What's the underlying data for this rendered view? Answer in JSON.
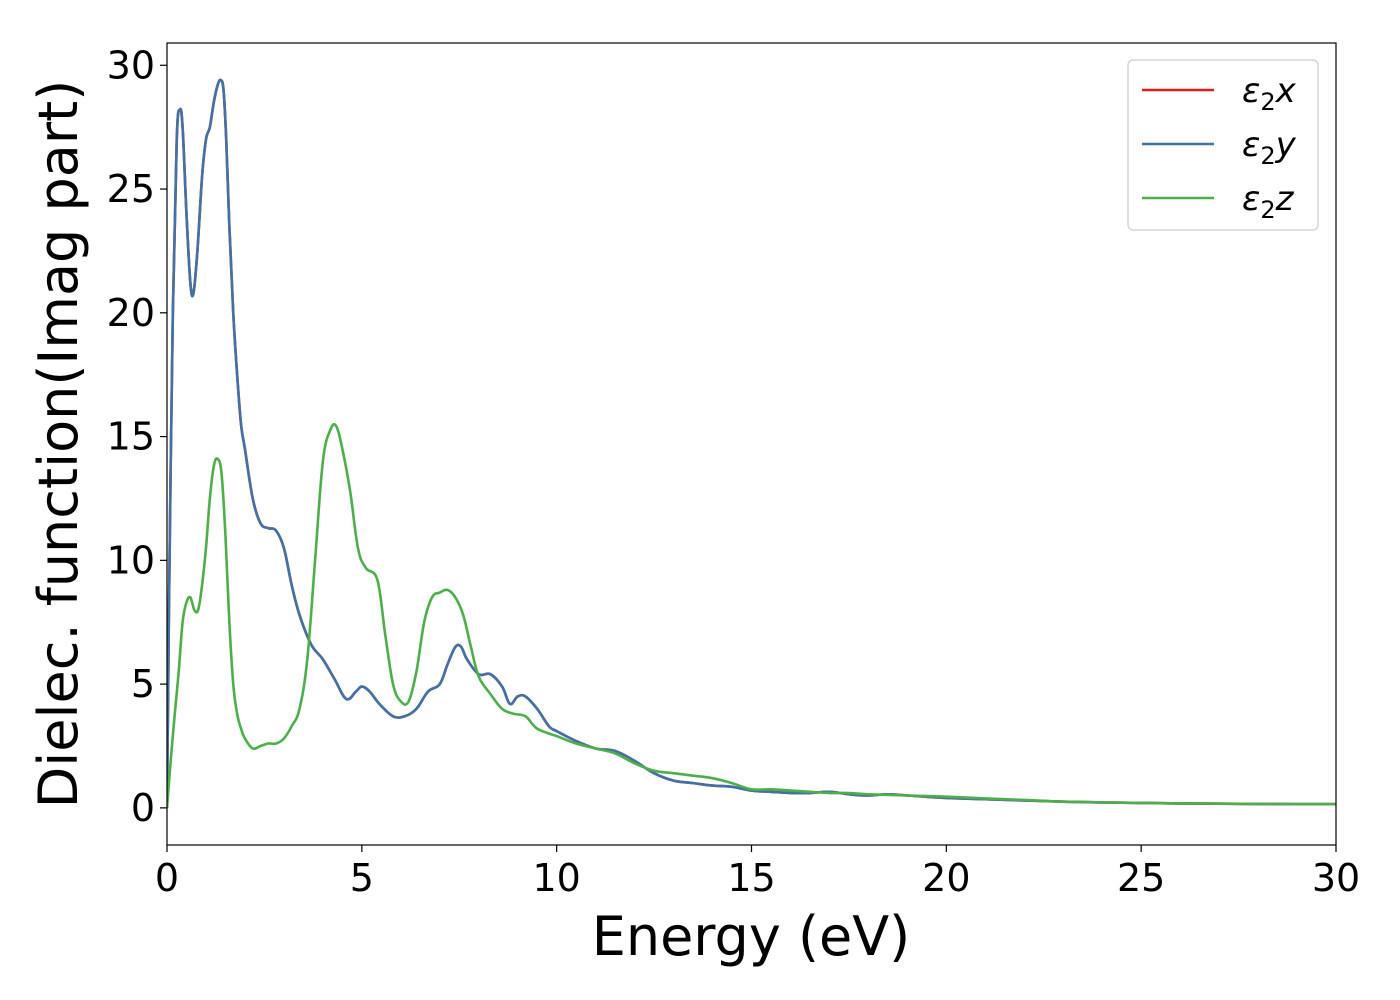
{
  "chart_data": {
    "type": "line",
    "xlabel": "Energy (eV)",
    "ylabel": "Dielec. function(Imag part)",
    "xlim": [
      0,
      30
    ],
    "ylim": [
      -1.5,
      30.9
    ],
    "xticks": [
      0,
      5,
      10,
      15,
      20,
      25,
      30
    ],
    "yticks": [
      0,
      5,
      10,
      15,
      20,
      25,
      30
    ],
    "grid": false,
    "legend_position": "top-right",
    "series": [
      {
        "name": "ε₂x",
        "legend_main": "ε",
        "legend_sub": "2",
        "legend_tail": "x",
        "color": "#e41a1c",
        "x": [
          0,
          0.05,
          0.15,
          0.25,
          0.33,
          0.4,
          0.5,
          0.6,
          0.68,
          0.78,
          0.9,
          1.0,
          1.1,
          1.2,
          1.3,
          1.38,
          1.45,
          1.52,
          1.6,
          1.7,
          1.8,
          1.9,
          2.0,
          2.2,
          2.4,
          2.6,
          2.8,
          3.0,
          3.2,
          3.4,
          3.7,
          4.0,
          4.3,
          4.6,
          4.85,
          5.0,
          5.2,
          5.45,
          5.8,
          6.1,
          6.4,
          6.7,
          7.0,
          7.2,
          7.4,
          7.55,
          7.7,
          8.0,
          8.3,
          8.6,
          8.8,
          9.0,
          9.2,
          9.5,
          9.8,
          10.0,
          10.5,
          11.0,
          11.5,
          12.0,
          12.5,
          13.0,
          13.5,
          14.0,
          14.5,
          15.0,
          15.5,
          16.0,
          16.5,
          17.0,
          17.5,
          18.0,
          18.5,
          19.0,
          20.0,
          21.0,
          22.0,
          23.0,
          24.0,
          25.0,
          26.0,
          27.0,
          28.0,
          29.0,
          30.0
        ],
        "y": [
          0,
          8,
          20,
          27,
          28.2,
          27.5,
          24,
          21.2,
          20.8,
          22.5,
          25.5,
          27,
          27.5,
          28.5,
          29.2,
          29.4,
          29,
          27,
          23.5,
          20,
          17.5,
          15.5,
          14.5,
          12.5,
          11.5,
          11.3,
          11.2,
          10.5,
          9,
          7.8,
          6.6,
          6.0,
          5.2,
          4.4,
          4.7,
          4.9,
          4.7,
          4.2,
          3.7,
          3.7,
          4.0,
          4.7,
          5.0,
          5.8,
          6.5,
          6.5,
          6.0,
          5.4,
          5.4,
          4.9,
          4.2,
          4.5,
          4.5,
          4.0,
          3.3,
          3.1,
          2.7,
          2.4,
          2.3,
          1.9,
          1.4,
          1.1,
          1.0,
          0.9,
          0.85,
          0.7,
          0.65,
          0.6,
          0.6,
          0.65,
          0.55,
          0.5,
          0.55,
          0.5,
          0.4,
          0.35,
          0.3,
          0.25,
          0.22,
          0.2,
          0.18,
          0.17,
          0.16,
          0.15,
          0.15
        ]
      },
      {
        "name": "ε₂y",
        "legend_main": "ε",
        "legend_sub": "2",
        "legend_tail": "y",
        "color": "#3f73a8",
        "x": [
          0,
          0.05,
          0.15,
          0.25,
          0.33,
          0.4,
          0.5,
          0.6,
          0.68,
          0.78,
          0.9,
          1.0,
          1.1,
          1.2,
          1.3,
          1.38,
          1.45,
          1.52,
          1.6,
          1.7,
          1.8,
          1.9,
          2.0,
          2.2,
          2.4,
          2.6,
          2.8,
          3.0,
          3.2,
          3.4,
          3.7,
          4.0,
          4.3,
          4.6,
          4.85,
          5.0,
          5.2,
          5.45,
          5.8,
          6.1,
          6.4,
          6.7,
          7.0,
          7.2,
          7.4,
          7.55,
          7.7,
          8.0,
          8.3,
          8.6,
          8.8,
          9.0,
          9.2,
          9.5,
          9.8,
          10.0,
          10.5,
          11.0,
          11.5,
          12.0,
          12.5,
          13.0,
          13.5,
          14.0,
          14.5,
          15.0,
          15.5,
          16.0,
          16.5,
          17.0,
          17.5,
          18.0,
          18.5,
          19.0,
          20.0,
          21.0,
          22.0,
          23.0,
          24.0,
          25.0,
          26.0,
          27.0,
          28.0,
          29.0,
          30.0
        ],
        "y": [
          0,
          8,
          20,
          27,
          28.2,
          27.5,
          24,
          21.2,
          20.8,
          22.5,
          25.5,
          27,
          27.5,
          28.5,
          29.2,
          29.4,
          29,
          27,
          23.5,
          20,
          17.5,
          15.5,
          14.5,
          12.5,
          11.5,
          11.3,
          11.2,
          10.5,
          9,
          7.8,
          6.6,
          6.0,
          5.2,
          4.4,
          4.7,
          4.9,
          4.7,
          4.2,
          3.7,
          3.7,
          4.0,
          4.7,
          5.0,
          5.8,
          6.5,
          6.5,
          6.0,
          5.4,
          5.4,
          4.9,
          4.2,
          4.5,
          4.5,
          4.0,
          3.3,
          3.1,
          2.7,
          2.4,
          2.3,
          1.9,
          1.4,
          1.1,
          1.0,
          0.9,
          0.85,
          0.7,
          0.65,
          0.6,
          0.6,
          0.65,
          0.55,
          0.5,
          0.55,
          0.5,
          0.4,
          0.35,
          0.3,
          0.25,
          0.22,
          0.2,
          0.18,
          0.17,
          0.16,
          0.15,
          0.15
        ]
      },
      {
        "name": "ε₂z",
        "legend_main": "ε",
        "legend_sub": "2",
        "legend_tail": "z",
        "color": "#4daf4a",
        "x": [
          0,
          0.1,
          0.2,
          0.3,
          0.4,
          0.5,
          0.6,
          0.7,
          0.8,
          0.9,
          1.0,
          1.1,
          1.2,
          1.3,
          1.4,
          1.5,
          1.6,
          1.7,
          1.8,
          1.9,
          2.0,
          2.2,
          2.4,
          2.6,
          2.8,
          3.0,
          3.2,
          3.4,
          3.6,
          3.8,
          4.0,
          4.2,
          4.35,
          4.5,
          4.7,
          4.9,
          5.1,
          5.4,
          5.6,
          5.8,
          6.0,
          6.2,
          6.4,
          6.6,
          6.8,
          7.0,
          7.2,
          7.4,
          7.6,
          7.8,
          8.0,
          8.3,
          8.6,
          8.9,
          9.2,
          9.5,
          10.0,
          10.5,
          11.0,
          11.5,
          12.0,
          12.5,
          13.0,
          13.5,
          14.0,
          14.5,
          15.0,
          15.5,
          16.0,
          16.5,
          17.0,
          17.5,
          18.0,
          19.0,
          20.0,
          21.0,
          22.0,
          23.0,
          24.0,
          25.0,
          26.0,
          27.0,
          28.0,
          29.0,
          30.0
        ],
        "y": [
          0,
          2,
          3.8,
          5.5,
          7.5,
          8.3,
          8.5,
          8.0,
          8.0,
          9.0,
          10.5,
          12.5,
          13.8,
          14.1,
          13.5,
          11,
          7.5,
          5.0,
          3.8,
          3.2,
          2.8,
          2.4,
          2.5,
          2.6,
          2.6,
          2.8,
          3.3,
          4.0,
          6.0,
          10.0,
          14.0,
          15.3,
          15.4,
          14.5,
          12.8,
          10.5,
          9.7,
          9.2,
          7.0,
          5.0,
          4.3,
          4.3,
          5.5,
          7.5,
          8.5,
          8.7,
          8.8,
          8.5,
          7.8,
          6.5,
          5.3,
          4.6,
          4.0,
          3.8,
          3.7,
          3.2,
          2.9,
          2.6,
          2.4,
          2.2,
          1.8,
          1.5,
          1.4,
          1.3,
          1.2,
          1.0,
          0.75,
          0.75,
          0.7,
          0.65,
          0.6,
          0.6,
          0.55,
          0.5,
          0.45,
          0.38,
          0.32,
          0.25,
          0.22,
          0.2,
          0.18,
          0.17,
          0.16,
          0.15,
          0.15
        ]
      }
    ]
  }
}
